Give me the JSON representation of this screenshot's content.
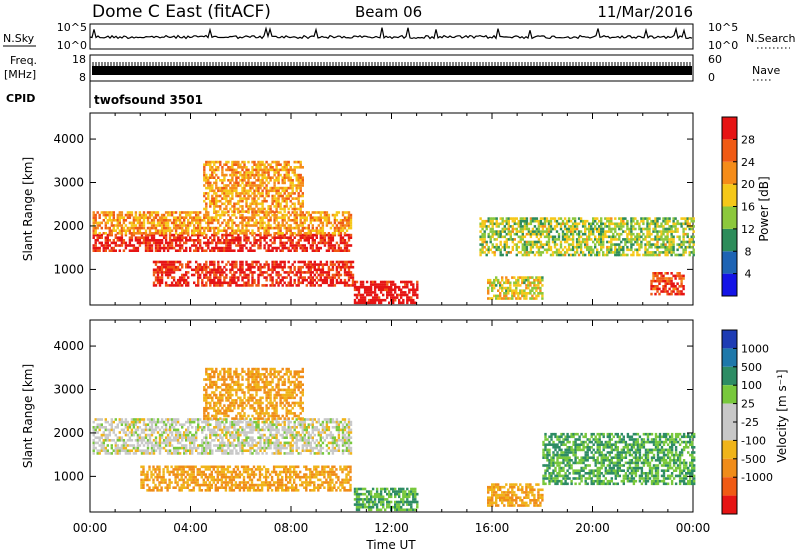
{
  "header": {
    "title": "Dome C East (fitACF)",
    "beam": "Beam 06",
    "date": "11/Mar/2016"
  },
  "strips": {
    "nsky_label": "N.Sky",
    "nsky_ticks_left": [
      "10^5",
      "10^0"
    ],
    "nsky_ticks_right": [
      "10^5",
      "10^0"
    ],
    "nsearch_label": "N.Search",
    "freq_label_line1": "Freq.",
    "freq_label_line2": "[MHz]",
    "freq_ticks_left": [
      "18",
      "8"
    ],
    "nave_ticks_right": [
      "60",
      "0"
    ],
    "nave_label": "Nave",
    "cpid_label": "CPID",
    "cpid_value": "twofsound 3501"
  },
  "panels": {
    "ylabel": "Slant Range [km]",
    "yticks": [
      "1000",
      "2000",
      "3000",
      "4000"
    ],
    "xticks": [
      "00:00",
      "04:00",
      "08:00",
      "12:00",
      "16:00",
      "20:00",
      "00:00"
    ],
    "xlabel": "Time UT"
  },
  "power_bar": {
    "title": "Power [dB]",
    "ticks": [
      "4",
      "8",
      "12",
      "16",
      "20",
      "24",
      "28"
    ],
    "colors": [
      "#1414e6",
      "#1e64b4",
      "#2d8c5a",
      "#8cc83c",
      "#f5c819",
      "#f58c19",
      "#f05a14",
      "#e61414"
    ]
  },
  "velocity_bar": {
    "title": "Velocity [m s⁻¹]",
    "ticks": [
      "1000",
      "500",
      "100",
      "25",
      "-25",
      "-100",
      "-500",
      "-1000"
    ],
    "colors": [
      "#1e3cb4",
      "#1e78aa",
      "#2d8c64",
      "#78c83c",
      "#c8c8c8",
      "#c8c8c8",
      "#f0b419",
      "#f08c19",
      "#f05a14",
      "#e61414"
    ]
  },
  "chart_data": [
    {
      "type": "heatmap",
      "title": "Power",
      "xlabel": "Time UT",
      "ylabel": "Slant Range [km]",
      "xlim_hours": [
        0,
        24
      ],
      "ylim_km": [
        180,
        4600
      ],
      "colorbar_label": "Power [dB]",
      "colorbar_range": [
        0,
        30
      ],
      "echo_regions": [
        {
          "t_start": 0.1,
          "t_end": 10.4,
          "range_km": [
            1400,
            1800
          ],
          "power_db": 28
        },
        {
          "t_start": 0.1,
          "t_end": 10.4,
          "range_km": [
            1800,
            2300
          ],
          "power_db": 20
        },
        {
          "t_start": 4.5,
          "t_end": 8.5,
          "range_km": [
            2300,
            3500
          ],
          "power_db": 20
        },
        {
          "t_start": 2.5,
          "t_end": 10.5,
          "range_km": [
            600,
            1200
          ],
          "power_db": 28
        },
        {
          "t_start": 10.5,
          "t_end": 13.0,
          "range_km": [
            200,
            700
          ],
          "power_db": 30
        },
        {
          "t_start": 15.8,
          "t_end": 18.0,
          "range_km": [
            300,
            800
          ],
          "power_db": 16
        },
        {
          "t_start": 15.5,
          "t_end": 24.0,
          "range_km": [
            1300,
            2200
          ],
          "power_db": 14
        },
        {
          "t_start": 22.3,
          "t_end": 23.6,
          "range_km": [
            400,
            900
          ],
          "power_db": 26
        }
      ]
    },
    {
      "type": "heatmap",
      "title": "Velocity",
      "xlabel": "Time UT",
      "ylabel": "Slant Range [km]",
      "xlim_hours": [
        0,
        24
      ],
      "ylim_km": [
        180,
        4600
      ],
      "colorbar_label": "Velocity [m s⁻¹]",
      "echo_regions": [
        {
          "t_start": 0.1,
          "t_end": 10.4,
          "range_km": [
            1500,
            2300
          ],
          "velocity_ms": 0
        },
        {
          "t_start": 2.0,
          "t_end": 10.4,
          "range_km": [
            650,
            1200
          ],
          "velocity_ms": -100
        },
        {
          "t_start": 4.5,
          "t_end": 8.5,
          "range_km": [
            2300,
            3500
          ],
          "velocity_ms": -100
        },
        {
          "t_start": 10.5,
          "t_end": 13.0,
          "range_km": [
            200,
            700
          ],
          "velocity_ms": 100
        },
        {
          "t_start": 15.8,
          "t_end": 18.0,
          "range_km": [
            300,
            800
          ],
          "velocity_ms": -100
        },
        {
          "t_start": 18.0,
          "t_end": 24.0,
          "range_km": [
            800,
            2000
          ],
          "velocity_ms": 100
        }
      ]
    }
  ]
}
